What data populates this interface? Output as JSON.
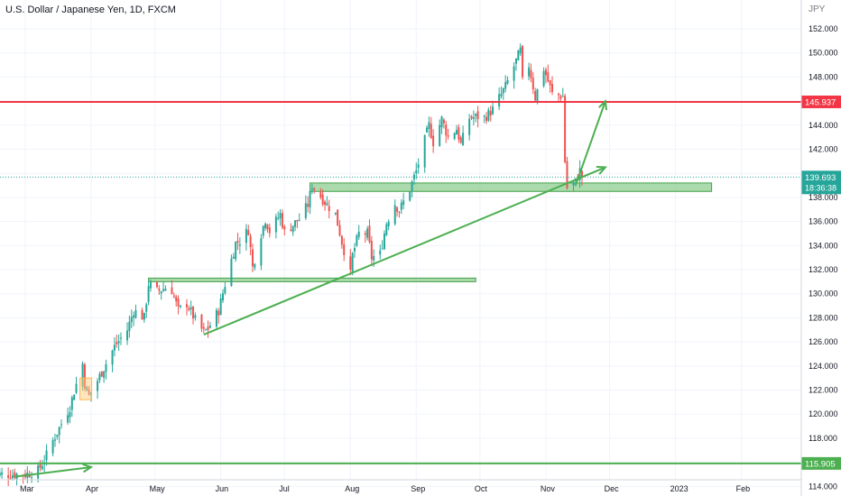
{
  "header": {
    "title": "U.S. Dollar / Japanese Yen, 1D, FXCM",
    "unit": "JPY"
  },
  "colors": {
    "up": "#26a69a",
    "down": "#ef5350",
    "resistance": "#f23645",
    "support": "#4caf50",
    "zone": "#66bb6a"
  },
  "chart_data": {
    "type": "candlestick",
    "title": "U.S. Dollar / Japanese Yen, 1D, FXCM",
    "ylabel": "JPY",
    "ylim": [
      113.2,
      153.2
    ],
    "y_ticks": [
      114,
      116,
      118,
      120,
      122,
      124,
      126,
      128,
      130,
      132,
      134,
      136,
      138,
      140,
      142,
      144,
      146,
      148,
      150,
      152
    ],
    "x_ticks": [
      {
        "label": "Mar",
        "date": "2022-03-01"
      },
      {
        "label": "Apr",
        "date": "2022-04-01"
      },
      {
        "label": "May",
        "date": "2022-05-01"
      },
      {
        "label": "Jun",
        "date": "2022-06-01"
      },
      {
        "label": "Jul",
        "date": "2022-07-01"
      },
      {
        "label": "Aug",
        "date": "2022-08-01"
      },
      {
        "label": "Sep",
        "date": "2022-09-01"
      },
      {
        "label": "Oct",
        "date": "2022-10-01"
      },
      {
        "label": "Nov",
        "date": "2022-11-01"
      },
      {
        "label": "Dec",
        "date": "2022-12-01"
      },
      {
        "label": "2023",
        "date": "2023-01-01"
      },
      {
        "label": "Feb",
        "date": "2023-02-01"
      }
    ],
    "grid": true,
    "price_path": [
      [
        "2022-02-14",
        115.0
      ],
      [
        "2022-03-01",
        115.0
      ],
      [
        "2022-03-07",
        115.3
      ],
      [
        "2022-03-10",
        116.2
      ],
      [
        "2022-03-14",
        117.8
      ],
      [
        "2022-03-18",
        119.2
      ],
      [
        "2022-03-22",
        120.6
      ],
      [
        "2022-03-24",
        121.9
      ],
      [
        "2022-03-28",
        124.2
      ],
      [
        "2022-03-29",
        122.5
      ],
      [
        "2022-03-31",
        121.5
      ],
      [
        "2022-04-04",
        122.8
      ],
      [
        "2022-04-08",
        124.2
      ],
      [
        "2022-04-12",
        125.6
      ],
      [
        "2022-04-18",
        127.0
      ],
      [
        "2022-04-21",
        128.6
      ],
      [
        "2022-04-26",
        128.0
      ],
      [
        "2022-04-28",
        130.8
      ],
      [
        "2022-05-02",
        130.2
      ],
      [
        "2022-05-06",
        130.5
      ],
      [
        "2022-05-09",
        130.3
      ],
      [
        "2022-05-12",
        128.6
      ],
      [
        "2022-05-16",
        129.2
      ],
      [
        "2022-05-20",
        127.8
      ],
      [
        "2022-05-24",
        126.8
      ],
      [
        "2022-05-26",
        127.1
      ],
      [
        "2022-05-31",
        128.6
      ],
      [
        "2022-06-03",
        130.8
      ],
      [
        "2022-06-08",
        134.2
      ],
      [
        "2022-06-10",
        134.4
      ],
      [
        "2022-06-14",
        135.3
      ],
      [
        "2022-06-16",
        132.2
      ],
      [
        "2022-06-20",
        135.0
      ],
      [
        "2022-06-22",
        136.2
      ],
      [
        "2022-06-24",
        135.2
      ],
      [
        "2022-06-29",
        136.6
      ],
      [
        "2022-07-01",
        135.1
      ],
      [
        "2022-07-06",
        135.9
      ],
      [
        "2022-07-08",
        136.2
      ],
      [
        "2022-07-12",
        137.4
      ],
      [
        "2022-07-14",
        139.0
      ],
      [
        "2022-07-18",
        138.1
      ],
      [
        "2022-07-21",
        137.4
      ],
      [
        "2022-07-25",
        136.6
      ],
      [
        "2022-07-28",
        134.3
      ],
      [
        "2022-08-01",
        131.6
      ],
      [
        "2022-08-02",
        133.2
      ],
      [
        "2022-08-05",
        135.0
      ],
      [
        "2022-08-09",
        135.0
      ],
      [
        "2022-08-11",
        133.0
      ],
      [
        "2022-08-15",
        133.3
      ],
      [
        "2022-08-18",
        135.9
      ],
      [
        "2022-08-22",
        137.5
      ],
      [
        "2022-08-24",
        136.9
      ],
      [
        "2022-08-29",
        138.7
      ],
      [
        "2022-09-01",
        140.2
      ],
      [
        "2022-09-07",
        144.0
      ],
      [
        "2022-09-09",
        142.6
      ],
      [
        "2022-09-13",
        144.5
      ],
      [
        "2022-09-16",
        143.0
      ],
      [
        "2022-09-20",
        143.7
      ],
      [
        "2022-09-22",
        142.4
      ],
      [
        "2022-09-26",
        144.6
      ],
      [
        "2022-09-30",
        144.7
      ],
      [
        "2022-10-03",
        144.6
      ],
      [
        "2022-10-07",
        145.3
      ],
      [
        "2022-10-13",
        147.2
      ],
      [
        "2022-10-17",
        148.9
      ],
      [
        "2022-10-20",
        150.2
      ],
      [
        "2022-10-21",
        147.6
      ],
      [
        "2022-10-24",
        149.0
      ],
      [
        "2022-10-27",
        146.3
      ],
      [
        "2022-10-31",
        148.7
      ],
      [
        "2022-11-04",
        146.6
      ],
      [
        "2022-11-09",
        146.4
      ],
      [
        "2022-11-10",
        141.0
      ],
      [
        "2022-11-11",
        138.8
      ],
      [
        "2022-11-15",
        139.3
      ],
      [
        "2022-11-17",
        140.2
      ],
      [
        "2022-11-18",
        139.693
      ]
    ],
    "horizontal_levels": [
      {
        "price": 145.937,
        "label": "145.937"
      },
      {
        "price": 115.905,
        "label": "115.905"
      }
    ],
    "last_price": {
      "price": 139.693,
      "label": "139.693",
      "countdown": "18:36:38"
    },
    "support_zones": [
      {
        "from": "2022-07-13",
        "to": "2023-01-18",
        "low": 138.5,
        "high": 139.2
      },
      {
        "from": "2022-04-28",
        "to": "2022-09-29",
        "low": 131.0,
        "high": 131.3
      }
    ],
    "trendline": {
      "from": [
        "2022-05-24",
        126.6
      ],
      "to": [
        "2022-11-29",
        140.5
      ]
    },
    "projection_arrow": {
      "from": [
        "2022-11-15",
        139.0
      ],
      "to": [
        "2022-11-29",
        146.0
      ]
    },
    "early_arrow": {
      "from": [
        "2022-02-24",
        114.8
      ],
      "to": [
        "2022-04-01",
        115.6
      ]
    }
  }
}
